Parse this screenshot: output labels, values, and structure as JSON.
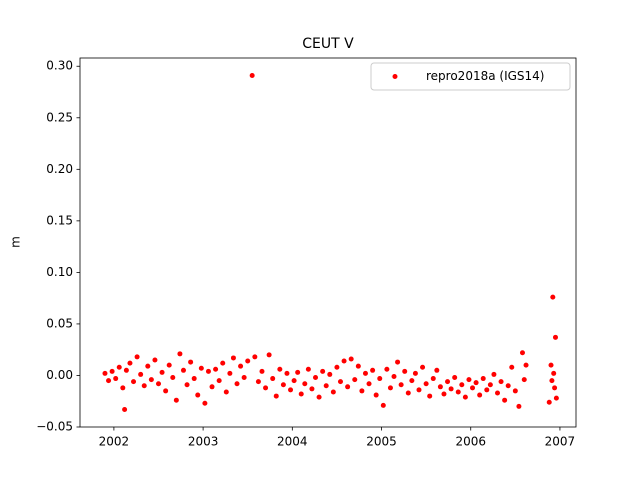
{
  "chart_data": {
    "type": "scatter",
    "title": "CEUT V",
    "ylabel": "m",
    "xlim": [
      2001.62,
      2007.18
    ],
    "xticks": [
      2002,
      2003,
      2004,
      2005,
      2006,
      2007
    ],
    "ylim": [
      -0.05,
      0.308
    ],
    "yticks": [
      {
        "value": -0.05,
        "label": "−0.05"
      },
      {
        "value": 0,
        "label": "0.00"
      },
      {
        "value": 0.05,
        "label": "0.05"
      },
      {
        "value": 0.1,
        "label": "0.10"
      },
      {
        "value": 0.15,
        "label": "0.15"
      },
      {
        "value": 0.2,
        "label": "0.20"
      },
      {
        "value": 0.25,
        "label": "0.25"
      },
      {
        "value": 0.3,
        "label": "0.30"
      }
    ],
    "legend": "upper right",
    "x": [
      2001.9,
      2001.94,
      2001.98,
      2002.02,
      2002.06,
      2002.1,
      2002.12,
      2002.14,
      2002.18,
      2002.22,
      2002.26,
      2002.3,
      2002.34,
      2002.38,
      2002.42,
      2002.46,
      2002.5,
      2002.54,
      2002.58,
      2002.62,
      2002.66,
      2002.7,
      2002.74,
      2002.78,
      2002.82,
      2002.86,
      2002.9,
      2002.94,
      2002.98,
      2003.02,
      2003.06,
      2003.1,
      2003.14,
      2003.18,
      2003.22,
      2003.26,
      2003.3,
      2003.34,
      2003.38,
      2003.42,
      2003.46,
      2003.5,
      2003.55,
      2003.58,
      2003.62,
      2003.66,
      2003.7,
      2003.74,
      2003.78,
      2003.82,
      2003.86,
      2003.9,
      2003.94,
      2003.98,
      2004.02,
      2004.06,
      2004.1,
      2004.14,
      2004.18,
      2004.22,
      2004.26,
      2004.3,
      2004.34,
      2004.38,
      2004.42,
      2004.46,
      2004.5,
      2004.54,
      2004.58,
      2004.62,
      2004.66,
      2004.7,
      2004.74,
      2004.78,
      2004.82,
      2004.86,
      2004.9,
      2004.94,
      2004.98,
      2005.02,
      2005.06,
      2005.1,
      2005.14,
      2005.18,
      2005.22,
      2005.26,
      2005.3,
      2005.34,
      2005.38,
      2005.42,
      2005.46,
      2005.5,
      2005.54,
      2005.58,
      2005.62,
      2005.66,
      2005.7,
      2005.74,
      2005.78,
      2005.82,
      2005.86,
      2005.9,
      2005.94,
      2005.98,
      2006.02,
      2006.06,
      2006.1,
      2006.14,
      2006.18,
      2006.22,
      2006.26,
      2006.3,
      2006.34,
      2006.38,
      2006.42,
      2006.46,
      2006.5,
      2006.54,
      2006.58,
      2006.6,
      2006.62,
      2006.88,
      2006.9,
      2006.91,
      2006.92,
      2006.93,
      2006.94,
      2006.95,
      2006.96
    ],
    "series": [
      {
        "name": "repro2018a (IGS14)",
        "color": "#ff0000",
        "values": [
          0.002,
          -0.005,
          0.004,
          -0.003,
          0.008,
          -0.012,
          -0.033,
          0.005,
          0.012,
          -0.006,
          0.018,
          0.001,
          -0.01,
          0.009,
          -0.004,
          0.015,
          -0.008,
          0.003,
          -0.015,
          0.01,
          -0.002,
          -0.024,
          0.021,
          0.005,
          -0.009,
          0.013,
          -0.003,
          -0.019,
          0.007,
          -0.027,
          0.004,
          -0.011,
          0.006,
          -0.005,
          0.012,
          -0.016,
          0.002,
          0.017,
          -0.008,
          0.009,
          -0.002,
          0.014,
          0.291,
          0.018,
          -0.006,
          0.004,
          -0.012,
          0.02,
          -0.003,
          -0.02,
          0.006,
          -0.009,
          0.002,
          -0.014,
          -0.005,
          0.003,
          -0.018,
          -0.008,
          0.006,
          -0.013,
          -0.002,
          -0.021,
          0.004,
          -0.01,
          0.001,
          -0.016,
          0.008,
          -0.006,
          0.014,
          -0.011,
          0.016,
          -0.004,
          0.009,
          -0.015,
          0.002,
          -0.008,
          0.005,
          -0.019,
          -0.003,
          -0.029,
          0.006,
          -0.012,
          -0.001,
          0.013,
          -0.009,
          0.004,
          -0.017,
          -0.005,
          0.002,
          -0.014,
          0.008,
          -0.008,
          -0.02,
          -0.003,
          0.005,
          -0.011,
          -0.018,
          -0.006,
          -0.013,
          -0.002,
          -0.016,
          -0.009,
          -0.021,
          -0.004,
          -0.012,
          -0.007,
          -0.019,
          -0.003,
          -0.014,
          -0.009,
          0.001,
          -0.017,
          -0.006,
          -0.024,
          -0.01,
          0.008,
          -0.015,
          -0.03,
          0.022,
          -0.004,
          0.01,
          -0.026,
          0.01,
          -0.005,
          0.076,
          0.002,
          -0.012,
          0.037,
          -0.022
        ]
      }
    ]
  }
}
